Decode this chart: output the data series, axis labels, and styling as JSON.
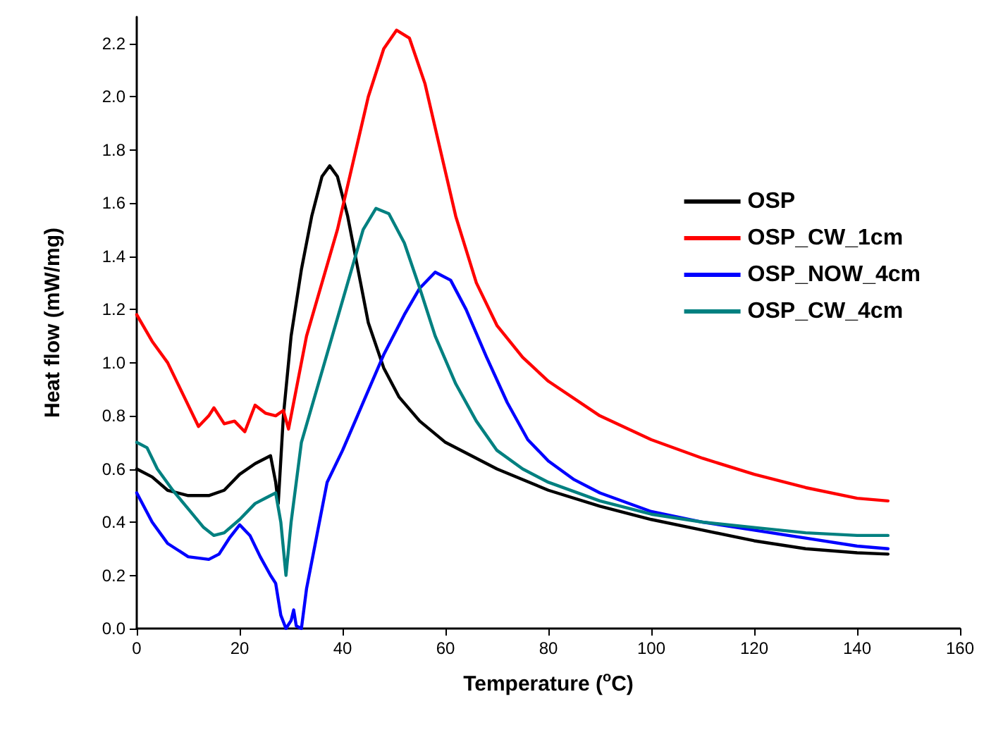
{
  "chart_data": {
    "type": "line",
    "xlabel": "Temperature ($^{o}$C)",
    "ylabel": "Heat flow (mW/mg)",
    "xlim": [
      0,
      160
    ],
    "xticks": [
      0,
      20,
      40,
      60,
      80,
      100,
      120,
      140,
      160
    ],
    "ylim": [
      0,
      2.3
    ],
    "yticks": [
      {
        "value": 0,
        "label": "0.0"
      },
      0.2,
      0.4,
      0.6,
      0.8,
      {
        "value": 1,
        "label": "1.0"
      },
      1.2,
      1.4,
      1.6,
      1.8,
      {
        "value": 2,
        "label": "2.0"
      },
      2.2
    ],
    "grid": false,
    "legend": "right",
    "marker": "none",
    "line_style": "solid",
    "series": [
      {
        "name": "OSP",
        "color": "#000000",
        "x": [
          0,
          3,
          6,
          10,
          14,
          17,
          20,
          23,
          26,
          27,
          27.5,
          28.5,
          30,
          32,
          34,
          36,
          37.5,
          39,
          41,
          43,
          45,
          48,
          51,
          55,
          60,
          70,
          80,
          90,
          100,
          110,
          120,
          130,
          140,
          146
        ],
        "values": [
          0.6,
          0.57,
          0.52,
          0.5,
          0.5,
          0.52,
          0.58,
          0.62,
          0.65,
          0.55,
          0.47,
          0.8,
          1.1,
          1.35,
          1.55,
          1.7,
          1.74,
          1.7,
          1.55,
          1.35,
          1.15,
          0.98,
          0.87,
          0.78,
          0.7,
          0.6,
          0.52,
          0.46,
          0.41,
          0.37,
          0.33,
          0.3,
          0.285,
          0.28
        ]
      },
      {
        "name": "OSP_CW_1cm",
        "color": "#ff0000",
        "x": [
          0,
          3,
          6,
          9,
          12,
          14,
          15,
          17,
          19,
          21,
          23,
          25,
          27,
          28.5,
          29.5,
          31,
          33,
          36,
          39,
          42,
          45,
          48,
          50.5,
          53,
          56,
          59,
          62,
          66,
          70,
          75,
          80,
          90,
          100,
          110,
          120,
          130,
          140,
          146
        ],
        "values": [
          1.18,
          1.08,
          1.0,
          0.88,
          0.76,
          0.8,
          0.83,
          0.77,
          0.78,
          0.74,
          0.84,
          0.81,
          0.8,
          0.82,
          0.75,
          0.9,
          1.1,
          1.3,
          1.5,
          1.75,
          2.0,
          2.18,
          2.25,
          2.22,
          2.05,
          1.8,
          1.55,
          1.3,
          1.14,
          1.02,
          0.93,
          0.8,
          0.71,
          0.64,
          0.58,
          0.53,
          0.49,
          0.48
        ]
      },
      {
        "name": "OSP_NOW_4cm",
        "color": "#0000ff",
        "x": [
          0,
          3,
          6,
          10,
          14,
          16,
          18,
          20,
          22,
          24,
          26,
          27,
          28,
          29,
          30,
          30.5,
          31,
          32,
          33,
          35,
          37,
          40,
          44,
          48,
          52,
          55,
          58,
          61,
          64,
          68,
          72,
          76,
          80,
          85,
          90,
          100,
          110,
          120,
          130,
          140,
          146
        ],
        "values": [
          0.51,
          0.4,
          0.32,
          0.27,
          0.26,
          0.28,
          0.34,
          0.39,
          0.35,
          0.27,
          0.2,
          0.17,
          0.05,
          0.0,
          0.03,
          0.07,
          0.01,
          0.0,
          0.15,
          0.35,
          0.55,
          0.67,
          0.85,
          1.03,
          1.18,
          1.28,
          1.34,
          1.31,
          1.2,
          1.02,
          0.85,
          0.71,
          0.63,
          0.56,
          0.51,
          0.44,
          0.4,
          0.37,
          0.34,
          0.31,
          0.3
        ]
      },
      {
        "name": "OSP_CW_4cm",
        "color": "#008080",
        "x": [
          0,
          2,
          4,
          7,
          10,
          13,
          15,
          17,
          20,
          23,
          25,
          27,
          28,
          29,
          30,
          32,
          35,
          38,
          41,
          44,
          46.5,
          49,
          52,
          55,
          58,
          62,
          66,
          70,
          75,
          80,
          90,
          100,
          110,
          120,
          130,
          140,
          146
        ],
        "values": [
          0.7,
          0.68,
          0.6,
          0.52,
          0.45,
          0.38,
          0.35,
          0.36,
          0.41,
          0.47,
          0.49,
          0.51,
          0.4,
          0.2,
          0.4,
          0.7,
          0.9,
          1.1,
          1.3,
          1.5,
          1.58,
          1.56,
          1.45,
          1.28,
          1.1,
          0.92,
          0.78,
          0.67,
          0.6,
          0.55,
          0.48,
          0.43,
          0.4,
          0.38,
          0.36,
          0.35,
          0.35
        ]
      }
    ]
  }
}
